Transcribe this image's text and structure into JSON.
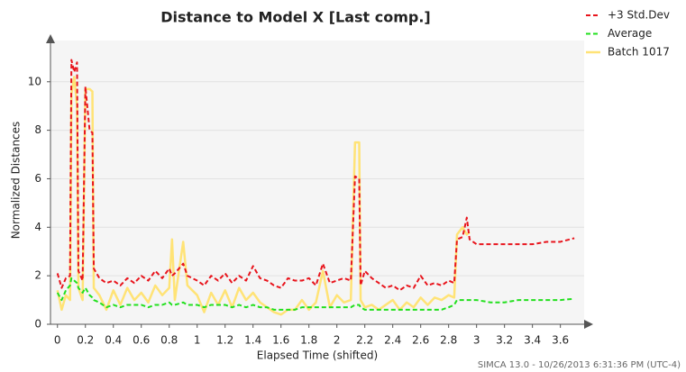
{
  "chart_data": {
    "type": "line",
    "title": "Distance to Model X [Last comp.]",
    "x_label": "Elapsed Time (shifted)",
    "y_label": "Normalized Distances",
    "footer": "SIMCA 13.0 - 10/26/2013 6:31:36 PM (UTC-4)",
    "legend": "top-right",
    "grid": true,
    "xlim": [
      -0.05,
      3.77
    ],
    "ylim": [
      0,
      11.7
    ],
    "xticks": [
      0,
      0.2,
      0.4,
      0.6,
      0.8,
      1,
      1.2,
      1.4,
      1.6,
      1.8,
      2,
      2.2,
      2.4,
      2.6,
      2.8,
      3,
      3.2,
      3.4,
      3.6
    ],
    "yticks": [
      0,
      2,
      4,
      6,
      8,
      10
    ],
    "x": [
      0,
      0.03,
      0.06,
      0.09,
      0.1,
      0.12,
      0.14,
      0.15,
      0.18,
      0.2,
      0.23,
      0.25,
      0.26,
      0.3,
      0.35,
      0.4,
      0.45,
      0.5,
      0.55,
      0.6,
      0.65,
      0.7,
      0.75,
      0.8,
      0.82,
      0.84,
      0.9,
      0.93,
      1.0,
      1.05,
      1.1,
      1.15,
      1.2,
      1.25,
      1.3,
      1.35,
      1.4,
      1.45,
      1.5,
      1.55,
      1.6,
      1.65,
      1.7,
      1.75,
      1.8,
      1.85,
      1.9,
      1.95,
      2.0,
      2.05,
      2.1,
      2.13,
      2.16,
      2.17,
      2.2,
      2.25,
      2.3,
      2.35,
      2.4,
      2.45,
      2.5,
      2.55,
      2.6,
      2.65,
      2.7,
      2.75,
      2.8,
      2.84,
      2.86,
      2.9,
      2.93,
      2.95,
      3.0,
      3.1,
      3.2,
      3.3,
      3.4,
      3.5,
      3.6,
      3.7
    ],
    "series": [
      {
        "name": "+3 Std.Dev",
        "color": "#e8141c",
        "line_style": "dashed",
        "values": [
          2.1,
          1.5,
          1.9,
          2.0,
          10.9,
          10.4,
          10.8,
          2.2,
          1.8,
          9.8,
          8.0,
          7.9,
          2.3,
          1.9,
          1.7,
          1.8,
          1.6,
          1.9,
          1.7,
          2.0,
          1.8,
          2.2,
          1.9,
          2.3,
          2.0,
          2.1,
          2.5,
          2.0,
          1.8,
          1.6,
          2.0,
          1.8,
          2.1,
          1.7,
          2.0,
          1.8,
          2.4,
          1.9,
          1.8,
          1.6,
          1.5,
          1.9,
          1.8,
          1.8,
          1.9,
          1.6,
          2.5,
          1.7,
          1.8,
          1.9,
          1.8,
          6.1,
          6.0,
          1.6,
          2.2,
          1.9,
          1.7,
          1.5,
          1.6,
          1.4,
          1.6,
          1.5,
          2.0,
          1.6,
          1.7,
          1.6,
          1.8,
          1.7,
          3.5,
          3.6,
          4.4,
          3.5,
          3.3,
          3.3,
          3.3,
          3.3,
          3.3,
          3.4,
          3.4,
          3.55
        ]
      },
      {
        "name": "Average",
        "color": "#22e01e",
        "line_style": "dashed",
        "values": [
          1.3,
          1.0,
          1.4,
          1.6,
          1.9,
          1.8,
          1.7,
          1.5,
          1.3,
          1.5,
          1.2,
          1.1,
          1.0,
          0.9,
          0.7,
          0.8,
          0.7,
          0.8,
          0.8,
          0.8,
          0.7,
          0.8,
          0.8,
          0.9,
          0.8,
          0.8,
          0.9,
          0.8,
          0.8,
          0.7,
          0.8,
          0.8,
          0.8,
          0.7,
          0.8,
          0.7,
          0.8,
          0.7,
          0.7,
          0.6,
          0.6,
          0.6,
          0.6,
          0.7,
          0.7,
          0.7,
          0.7,
          0.7,
          0.7,
          0.7,
          0.7,
          0.8,
          0.8,
          0.7,
          0.6,
          0.6,
          0.6,
          0.6,
          0.6,
          0.6,
          0.6,
          0.6,
          0.6,
          0.6,
          0.6,
          0.6,
          0.7,
          0.8,
          1.0,
          1.0,
          1.0,
          1.0,
          1.0,
          0.9,
          0.9,
          1.0,
          1.0,
          1.0,
          1.0,
          1.05
        ]
      },
      {
        "name": "Batch 1017",
        "color": "#ffe376",
        "line_style": "solid",
        "values": [
          1.4,
          0.6,
          1.2,
          1.0,
          9.5,
          10.2,
          9.0,
          1.5,
          1.0,
          9.7,
          9.7,
          9.6,
          1.5,
          1.2,
          0.6,
          1.4,
          0.8,
          1.5,
          1.0,
          1.3,
          0.9,
          1.6,
          1.2,
          1.5,
          3.5,
          1.0,
          3.4,
          1.6,
          1.2,
          0.5,
          1.3,
          0.8,
          1.4,
          0.7,
          1.5,
          1.0,
          1.3,
          0.9,
          0.7,
          0.5,
          0.4,
          0.6,
          0.6,
          1.0,
          0.6,
          0.9,
          2.2,
          0.7,
          1.2,
          0.9,
          1.0,
          7.5,
          7.5,
          1.0,
          0.7,
          0.8,
          0.6,
          0.8,
          1.0,
          0.6,
          0.9,
          0.7,
          1.1,
          0.8,
          1.1,
          1.0,
          1.2,
          1.1,
          3.7,
          4.0,
          3.7,
          3.8,
          null,
          null,
          null,
          null,
          null,
          null,
          null,
          null
        ]
      }
    ]
  }
}
